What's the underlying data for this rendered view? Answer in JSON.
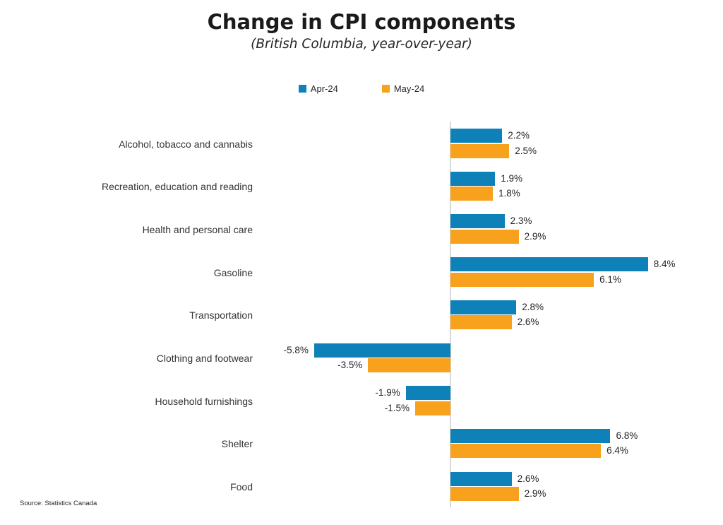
{
  "title": "Change in CPI components",
  "subtitle": "(British Columbia, year-over-year)",
  "source": "Source: Statistics Canada",
  "colors": {
    "apr": "#0e81b8",
    "may": "#f8a11d",
    "axis_line": "#d9d9d9"
  },
  "legend": {
    "items": [
      {
        "label": "Apr-24"
      },
      {
        "label": "May-24"
      }
    ]
  },
  "chart_data": {
    "type": "bar",
    "orientation": "horizontal",
    "title": "Change in CPI components",
    "subtitle": "(British Columbia, year-over-year)",
    "categories": [
      "Alcohol, tobacco and cannabis",
      "Recreation, education and reading",
      "Health and personal care",
      "Gasoline",
      "Transportation",
      "Clothing and footwear",
      "Household furnishings",
      "Shelter",
      "Food"
    ],
    "series": [
      {
        "name": "Apr-24",
        "color": "#0e81b8",
        "values": [
          2.2,
          1.9,
          2.3,
          8.4,
          2.8,
          -5.8,
          -1.9,
          6.8,
          2.6
        ],
        "labels": [
          "2.2%",
          "1.9%",
          "2.3%",
          "8.4%",
          "2.8%",
          "-5.8%",
          "-1.9%",
          "6.8%",
          "2.6%"
        ]
      },
      {
        "name": "May-24",
        "color": "#f8a11d",
        "values": [
          2.5,
          1.8,
          2.9,
          6.1,
          2.6,
          -3.5,
          -1.5,
          6.4,
          2.9
        ],
        "labels": [
          "2.5%",
          "1.8%",
          "2.9%",
          "6.1%",
          "2.6%",
          "-3.5%",
          "-1.5%",
          "6.4%",
          "2.9%"
        ]
      }
    ],
    "xlim": [
      -8,
      8.8
    ],
    "grid": false,
    "zero_line": true,
    "legend_position": "top",
    "value_label_format": "0.0%"
  }
}
